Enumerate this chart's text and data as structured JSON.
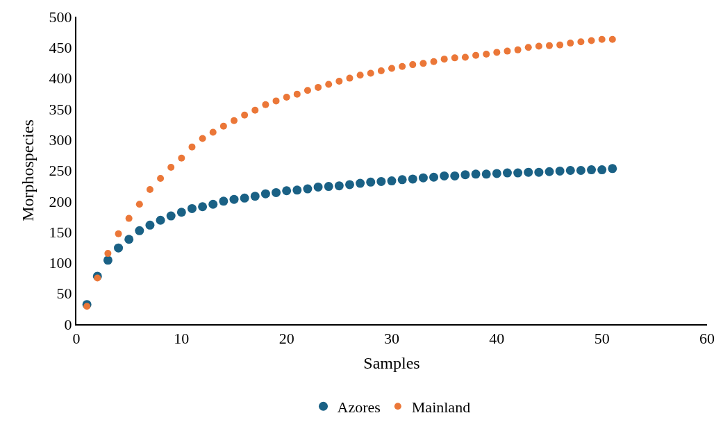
{
  "chart_data": {
    "type": "scatter",
    "xlabel": "Samples",
    "ylabel": "Morphospecies",
    "x": [
      1,
      2,
      3,
      4,
      5,
      6,
      7,
      8,
      9,
      10,
      11,
      12,
      13,
      14,
      15,
      16,
      17,
      18,
      19,
      20,
      21,
      22,
      23,
      24,
      25,
      26,
      27,
      28,
      29,
      30,
      31,
      32,
      33,
      34,
      35,
      36,
      37,
      38,
      39,
      40,
      41,
      42,
      43,
      44,
      45,
      46,
      47,
      48,
      49,
      50,
      51
    ],
    "series": [
      {
        "name": "Azores",
        "color": "#1a6185",
        "values": [
          32,
          78,
          104,
          124,
          138,
          152,
          161,
          169,
          176,
          182,
          188,
          191,
          195,
          200,
          203,
          205,
          208,
          212,
          214,
          217,
          218,
          220,
          223,
          224,
          225,
          227,
          229,
          231,
          232,
          233,
          235,
          236,
          238,
          239,
          241,
          241,
          243,
          244,
          244,
          245,
          246,
          246,
          247,
          247,
          248,
          249,
          250,
          250,
          251,
          251,
          253
        ]
      },
      {
        "name": "Mainland",
        "color": "#eb7738",
        "values": [
          29,
          75,
          115,
          147,
          172,
          195,
          219,
          237,
          255,
          270,
          288,
          302,
          312,
          322,
          331,
          340,
          348,
          357,
          363,
          369,
          374,
          380,
          385,
          390,
          395,
          400,
          405,
          408,
          412,
          416,
          419,
          422,
          424,
          427,
          431,
          433,
          434,
          437,
          439,
          442,
          444,
          446,
          450,
          452,
          453,
          454,
          457,
          459,
          461,
          463,
          463
        ]
      }
    ],
    "xlim": [
      0,
      60
    ],
    "xticks": [
      0,
      10,
      20,
      30,
      40,
      50,
      60
    ],
    "ylim": [
      0,
      500
    ],
    "yticks": [
      0,
      50,
      100,
      150,
      200,
      250,
      300,
      350,
      400,
      450,
      500
    ],
    "grid": false,
    "legend": "bottom",
    "marker": "circle"
  }
}
